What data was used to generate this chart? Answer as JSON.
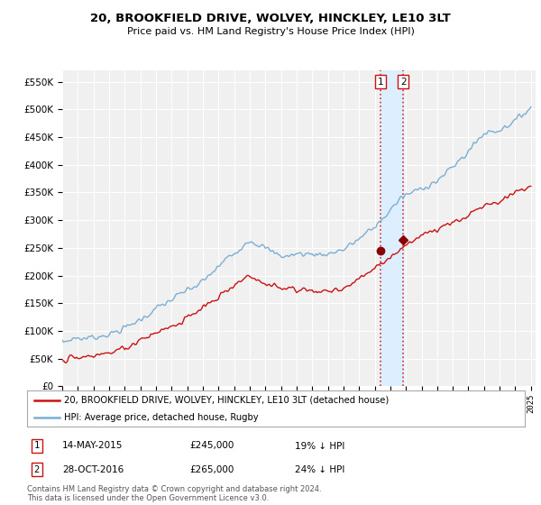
{
  "title": "20, BROOKFIELD DRIVE, WOLVEY, HINCKLEY, LE10 3LT",
  "subtitle": "Price paid vs. HM Land Registry's House Price Index (HPI)",
  "ylim": [
    0,
    570000
  ],
  "yticks": [
    0,
    50000,
    100000,
    150000,
    200000,
    250000,
    300000,
    350000,
    400000,
    450000,
    500000,
    550000
  ],
  "hpi_color": "#7aafd4",
  "price_color": "#cc1111",
  "legend_hpi": "HPI: Average price, detached house, Rugby",
  "legend_price": "20, BROOKFIELD DRIVE, WOLVEY, HINCKLEY, LE10 3LT (detached house)",
  "transaction1_date": "14-MAY-2015",
  "transaction1_price": 245000,
  "transaction1_label": "19% ↓ HPI",
  "transaction2_date": "28-OCT-2016",
  "transaction2_price": 265000,
  "transaction2_label": "24% ↓ HPI",
  "footnote": "Contains HM Land Registry data © Crown copyright and database right 2024.\nThis data is licensed under the Open Government Licence v3.0.",
  "bg_color": "#f0f0f0",
  "grid_color": "#ffffff",
  "transaction1_x": 2015.37,
  "transaction2_x": 2016.83,
  "shade_color": "#ddeeff"
}
